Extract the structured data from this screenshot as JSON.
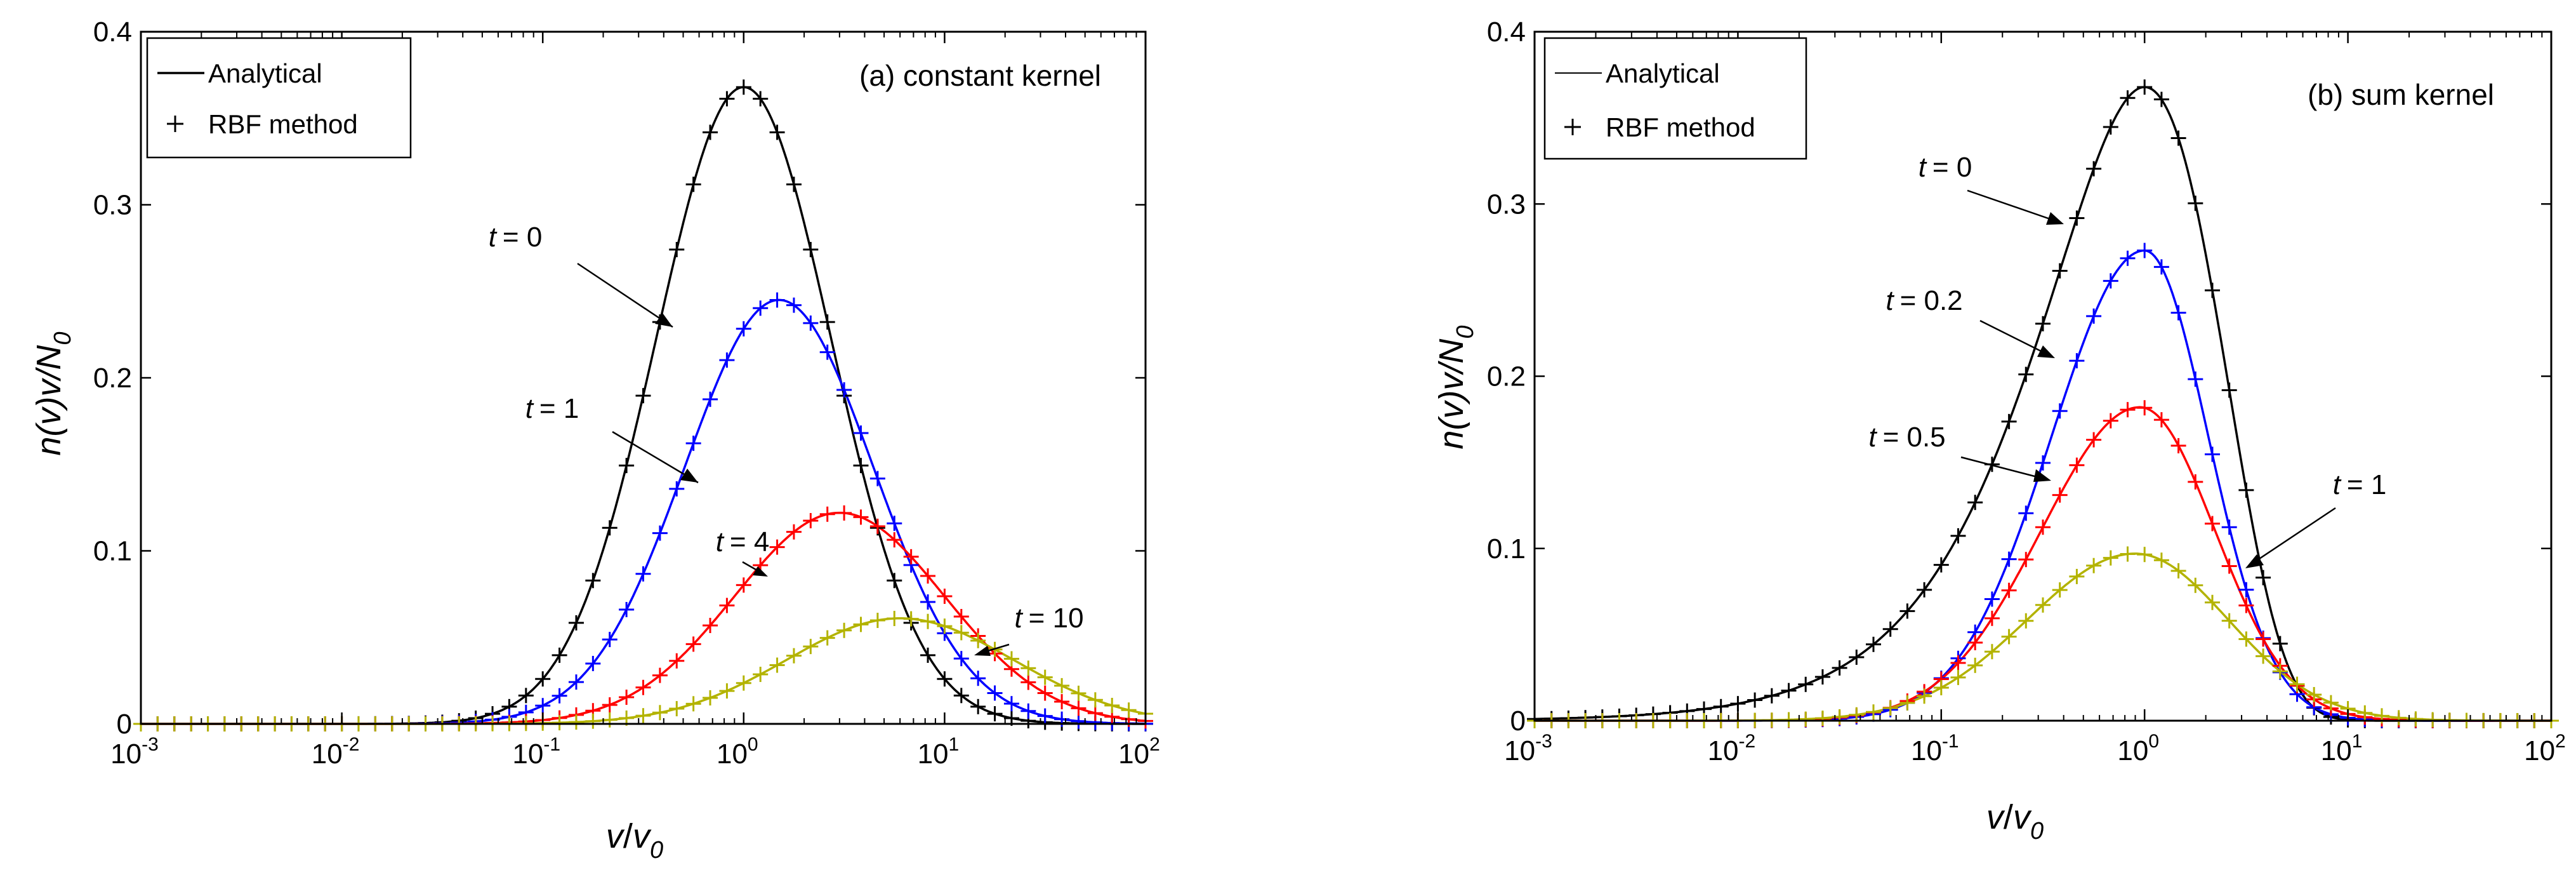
{
  "chart_data": [
    {
      "type": "line",
      "panel": "a",
      "title": "(a) constant kernel",
      "xscale": "log",
      "xlim": [
        0.001,
        100
      ],
      "ylim": [
        0,
        0.4
      ],
      "xlabel": "v/v0",
      "xlabel_parts": {
        "v": "v",
        "slash": "/",
        "v0": "v",
        "sub": "0"
      },
      "ylabel": "n(v)v/N0",
      "ylabel_parts": {
        "main": "n(v)v/N",
        "sub": "0"
      },
      "yticks": [
        "0",
        "0.1",
        "0.2",
        "0.3",
        "0.4"
      ],
      "yticks_values": [
        0,
        0.1,
        0.2,
        0.3,
        0.4
      ],
      "xticks": [
        {
          "base": "10",
          "exp": "-3",
          "value": 0.001
        },
        {
          "base": "10",
          "exp": "-2",
          "value": 0.01
        },
        {
          "base": "10",
          "exp": "-1",
          "value": 0.1
        },
        {
          "base": "10",
          "exp": "0",
          "value": 1
        },
        {
          "base": "10",
          "exp": "1",
          "value": 10
        },
        {
          "base": "10",
          "exp": "2",
          "value": 100
        }
      ],
      "legend": {
        "position": "top-left",
        "entries": [
          "Analytical",
          "RBF method"
        ]
      },
      "series": [
        {
          "name": "t = 0",
          "t_label": "t",
          "t_value": "= 0",
          "color": "#000000",
          "model": "lognormal",
          "peak": 0.368,
          "center": 1.0,
          "width": 1.0
        },
        {
          "name": "t = 1",
          "t_label": "t",
          "t_value": "= 1",
          "color": "#0000ff",
          "model": "lognormal",
          "peak": 0.245,
          "center": 1.5,
          "width": 1.08
        },
        {
          "name": "t = 4",
          "t_label": "t",
          "t_value": "= 4",
          "color": "#ff0000",
          "model": "lognormal",
          "peak": 0.122,
          "center": 3.0,
          "width": 1.2
        },
        {
          "name": "t = 10",
          "t_label": "t",
          "t_value": "= 10",
          "color": "#b3b300",
          "model": "lognormal",
          "peak": 0.061,
          "center": 6.0,
          "width": 1.3
        }
      ]
    },
    {
      "type": "line",
      "panel": "b",
      "title": "(b) sum kernel",
      "xscale": "log",
      "xlim": [
        0.001,
        100
      ],
      "ylim": [
        0,
        0.4
      ],
      "xlabel": "v/v0",
      "xlabel_parts": {
        "v": "v",
        "slash": "/",
        "v0": "v",
        "sub": "0"
      },
      "ylabel": "n(v)v/N0",
      "ylabel_parts": {
        "main": "n(v)v/N",
        "sub": "0"
      },
      "yticks": [
        "0",
        "0.1",
        "0.2",
        "0.3",
        "0.4"
      ],
      "yticks_values": [
        0,
        0.1,
        0.2,
        0.3,
        0.4
      ],
      "xticks": [
        {
          "base": "10",
          "exp": "-3",
          "value": 0.001
        },
        {
          "base": "10",
          "exp": "-2",
          "value": 0.01
        },
        {
          "base": "10",
          "exp": "-1",
          "value": 0.1
        },
        {
          "base": "10",
          "exp": "0",
          "value": 1
        },
        {
          "base": "10",
          "exp": "1",
          "value": 10
        },
        {
          "base": "10",
          "exp": "2",
          "value": 100
        }
      ],
      "legend": {
        "position": "top-left",
        "entries": [
          "Analytical",
          "RBF method"
        ]
      },
      "series": [
        {
          "name": "t = 0",
          "t_label": "t",
          "t_value": "= 0",
          "color": "#000000",
          "model": "exp",
          "peak": 0.368,
          "center": 1.0
        },
        {
          "name": "t = 0.2",
          "t_label": "t",
          "t_value": "= 0.2",
          "color": "#0000ff",
          "model": "sumkernel",
          "peak": 0.273,
          "center": 1.0
        },
        {
          "name": "t = 0.5",
          "t_label": "t",
          "t_value": "= 0.5",
          "color": "#ff0000",
          "model": "sumkernel",
          "peak": 0.182,
          "center": 0.95
        },
        {
          "name": "t = 1",
          "t_label": "t",
          "t_value": "= 1",
          "color": "#b3b300",
          "model": "sumkernel",
          "peak": 0.097,
          "center": 0.9
        }
      ]
    }
  ]
}
